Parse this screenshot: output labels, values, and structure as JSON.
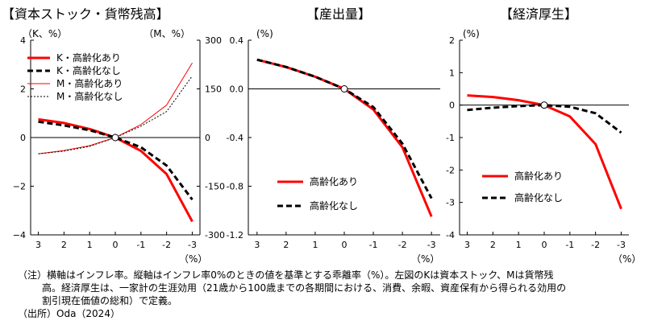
{
  "chart_data": [
    {
      "type": "line",
      "title": "【資本ストック・貨幣残高】",
      "left_unit": "（K、%）",
      "right_unit": "（M、%）",
      "xlabel": "（%）",
      "x": [
        3,
        2,
        1,
        0,
        -1,
        -2,
        -3
      ],
      "x_ticks": [
        "3",
        "2",
        "1",
        "0",
        "-1",
        "-2",
        "-3"
      ],
      "ylim": [
        -4,
        4
      ],
      "y_ticks": [
        "4",
        "2",
        "0",
        "−2",
        "−4"
      ],
      "y2lim": [
        -300,
        300
      ],
      "y2_ticks": [
        "300",
        "150",
        "0",
        "-150",
        "-300"
      ],
      "legend_position": "top-left",
      "series": [
        {
          "name": "K・高齢化あり",
          "axis": "left",
          "color": "#ff0000",
          "style": "solid-thick",
          "values": [
            0.75,
            0.6,
            0.35,
            0,
            -0.55,
            -1.5,
            -3.45
          ]
        },
        {
          "name": "K・高齢化なし",
          "axis": "left",
          "color": "#000000",
          "style": "dashed-thick",
          "values": [
            0.65,
            0.5,
            0.3,
            0,
            -0.4,
            -1.15,
            -2.55
          ]
        },
        {
          "name": "M・高齢化あり",
          "axis": "right",
          "color": "#ff0000",
          "style": "solid-thin",
          "values": [
            -50,
            -40,
            -25,
            0,
            40,
            100,
            230
          ]
        },
        {
          "name": "M・高齢化なし",
          "axis": "right",
          "color": "#000000",
          "style": "dotted-thin",
          "values": [
            -50,
            -42,
            -27,
            0,
            35,
            80,
            190
          ]
        }
      ]
    },
    {
      "type": "line",
      "title": "【産出量】",
      "left_unit": "(%)",
      "xlabel": "（%）",
      "x": [
        3,
        2,
        1,
        0,
        -1,
        -2,
        -3
      ],
      "x_ticks": [
        "3",
        "2",
        "1",
        "0",
        "-1",
        "-2",
        "-3"
      ],
      "ylim": [
        -1.2,
        0.4
      ],
      "y_ticks": [
        "0.4",
        "0.0",
        "-0.4",
        "-0.8",
        "-1.2"
      ],
      "legend_position": "bottom-left",
      "series": [
        {
          "name": "高齢化あり",
          "color": "#ff0000",
          "style": "solid-thick",
          "values": [
            0.24,
            0.18,
            0.1,
            0,
            -0.17,
            -0.48,
            -1.05
          ]
        },
        {
          "name": "高齢化なし",
          "color": "#000000",
          "style": "dashed-thick",
          "values": [
            0.24,
            0.18,
            0.1,
            0,
            -0.15,
            -0.45,
            -0.9
          ]
        }
      ]
    },
    {
      "type": "line",
      "title": "【経済厚生】",
      "left_unit": "(%)",
      "xlabel": "（%）",
      "x": [
        3,
        2,
        1,
        0,
        -1,
        -2,
        -3
      ],
      "x_ticks": [
        "3",
        "2",
        "1",
        "0",
        "-1",
        "-2",
        "-3"
      ],
      "ylim": [
        -4,
        2
      ],
      "y_ticks": [
        "2",
        "1",
        "0",
        "-1",
        "-2",
        "-3",
        "-4"
      ],
      "legend_position": "bottom-left",
      "series": [
        {
          "name": "高齢化あり",
          "color": "#ff0000",
          "style": "solid-thick",
          "values": [
            0.3,
            0.25,
            0.15,
            0,
            -0.35,
            -1.2,
            -3.2
          ]
        },
        {
          "name": "高齢化なし",
          "color": "#000000",
          "style": "dashed-thick",
          "values": [
            -0.15,
            -0.08,
            -0.03,
            0,
            -0.05,
            -0.25,
            -0.85
          ]
        }
      ]
    }
  ],
  "notes": {
    "line1": "（注）横軸はインフレ率。縦軸はインフレ率0%のときの値を基準とする乖離率（%）。左図のKは資本ストック、Mは貨幣残",
    "line2": "高。経済厚生は、一家計の生涯効用（21歳から100歳までの各期間における、消費、余暇、資産保有から得られる効用の",
    "line3": "割引現在価値の総和）で定義。",
    "source": "（出所）Oda（2024）"
  }
}
